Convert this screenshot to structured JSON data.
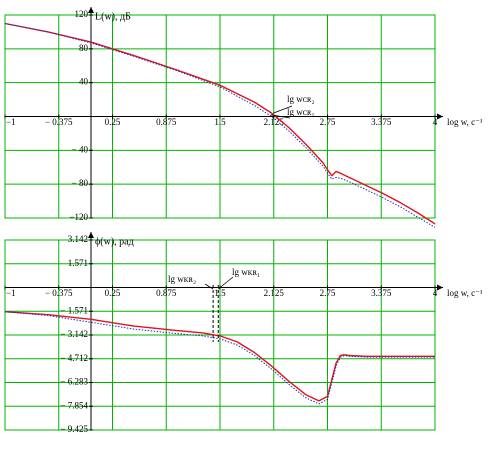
{
  "colors": {
    "grid": "#00b400",
    "frame": "#00b400",
    "series_main": "#e0141c",
    "series_alt": "#2030c0",
    "text": "#000000"
  },
  "chart_data": [
    {
      "type": "line",
      "ylabel": "L(w), дБ",
      "xlabel": "log w, c⁻¹",
      "xlim": [
        -1,
        4
      ],
      "ylim": [
        -120,
        120
      ],
      "x_ticks": [
        -1,
        -0.375,
        0.25,
        0.875,
        1.5,
        2.125,
        2.75,
        3.375,
        4
      ],
      "x_tick_labels": [
        "−1",
        "− 0.375",
        "0.25",
        "0.875",
        "1.5",
        "2.125",
        "2.75",
        "3.375",
        "4"
      ],
      "y_ticks": [
        120,
        80,
        40,
        0,
        -40,
        -80,
        -120
      ],
      "y_tick_labels": [
        "120",
        "80",
        "40",
        "",
        "− 40",
        "− 80",
        "−120"
      ],
      "annotations": [
        "lg wᴄʀ₂",
        "lg wᴄʀ₁"
      ],
      "series": [
        {
          "style": "solid",
          "x": [
            -1,
            -0.5,
            0,
            0.5,
            1,
            1.5,
            1.9,
            2.1,
            2.3,
            2.5,
            2.7,
            2.75,
            2.8,
            2.85,
            2.9,
            3.0,
            3.375,
            3.6,
            3.8,
            4
          ],
          "y": [
            110,
            100,
            88,
            72,
            55,
            37,
            17,
            4,
            -13,
            -33,
            -55,
            -63,
            -70,
            -65,
            -67,
            -72,
            -90,
            -102,
            -114,
            -127
          ]
        },
        {
          "style": "dotted",
          "x": [
            -1,
            -0.5,
            0,
            0.5,
            1,
            1.5,
            1.9,
            2.1,
            2.3,
            2.5,
            2.7,
            2.75,
            2.8,
            2.85,
            2.9,
            3.0,
            3.375,
            3.6,
            3.8,
            4
          ],
          "y": [
            110,
            100,
            87,
            71,
            54,
            35,
            13,
            0,
            -17,
            -37,
            -59,
            -67,
            -74,
            -72,
            -73,
            -77,
            -95,
            -107,
            -119,
            -131
          ]
        }
      ]
    },
    {
      "type": "line",
      "ylabel": "ϕ(w), рад",
      "xlabel": "log w, c⁻¹",
      "xlim": [
        -1,
        4
      ],
      "ylim": [
        -9.425,
        3.142
      ],
      "x_ticks": [
        -1,
        -0.375,
        0.25,
        0.875,
        1.5,
        2.125,
        2.75,
        3.375,
        4
      ],
      "x_tick_labels": [
        "−1",
        "− 0.375",
        "0.25",
        "0.875",
        "1.5",
        "2.125",
        "2.75",
        "3.375",
        "4"
      ],
      "y_ticks": [
        3.142,
        1.571,
        0,
        -1.571,
        -3.142,
        -4.712,
        -6.283,
        -7.854,
        -9.425
      ],
      "y_tick_labels": [
        "3.142",
        "1.571",
        "",
        "− 1.571",
        "− 3.142",
        "− 4.712",
        "− 6.283",
        "− 7.854",
        "− 9.425"
      ],
      "annotations": [
        "lg wᴋʀ₂",
        "lg wᴋʀ₁"
      ],
      "series": [
        {
          "style": "solid",
          "x": [
            -1,
            -0.5,
            0,
            0.5,
            1,
            1.3,
            1.5,
            1.7,
            1.9,
            2.1,
            2.3,
            2.5,
            2.65,
            2.75,
            2.85,
            2.9,
            2.95,
            3.0,
            3.2,
            4
          ],
          "y": [
            -1.6,
            -1.8,
            -2.1,
            -2.55,
            -2.85,
            -3.0,
            -3.2,
            -3.6,
            -4.3,
            -5.2,
            -6.2,
            -7.1,
            -7.5,
            -7.2,
            -5.0,
            -4.5,
            -4.45,
            -4.5,
            -4.55,
            -4.55
          ]
        },
        {
          "style": "dotted",
          "x": [
            -1,
            -0.5,
            0,
            0.5,
            1,
            1.3,
            1.5,
            1.7,
            1.9,
            2.1,
            2.3,
            2.5,
            2.65,
            2.75,
            2.85,
            2.9,
            2.95,
            3.0,
            3.2,
            4
          ],
          "y": [
            -1.6,
            -1.85,
            -2.3,
            -2.75,
            -3.05,
            -3.2,
            -3.4,
            -3.8,
            -4.5,
            -5.4,
            -6.4,
            -7.3,
            -7.7,
            -7.4,
            -5.2,
            -4.6,
            -4.5,
            -4.55,
            -4.6,
            -4.6
          ]
        }
      ]
    }
  ]
}
